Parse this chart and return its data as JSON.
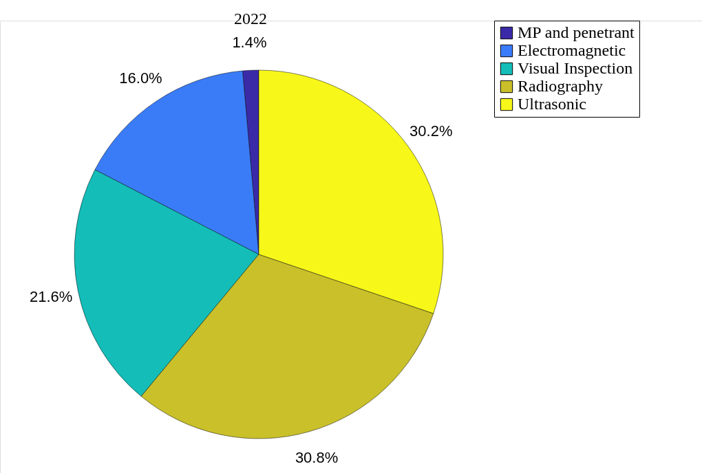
{
  "chart_data": {
    "type": "pie",
    "title": "2022",
    "categories": [
      "MP and penetrant",
      "Electromagnetic",
      "Visual Inspection",
      "Radiography",
      "Ultrasonic"
    ],
    "values": [
      1.4,
      16.0,
      21.6,
      30.8,
      30.2
    ],
    "value_labels": [
      "1.4%",
      "16.0%",
      "21.6%",
      "30.8%",
      "30.2%"
    ],
    "colors": [
      "#3a2aa8",
      "#3a7cf8",
      "#14bdb8",
      "#c9c02a",
      "#f7f71a"
    ],
    "legend": "top right"
  }
}
